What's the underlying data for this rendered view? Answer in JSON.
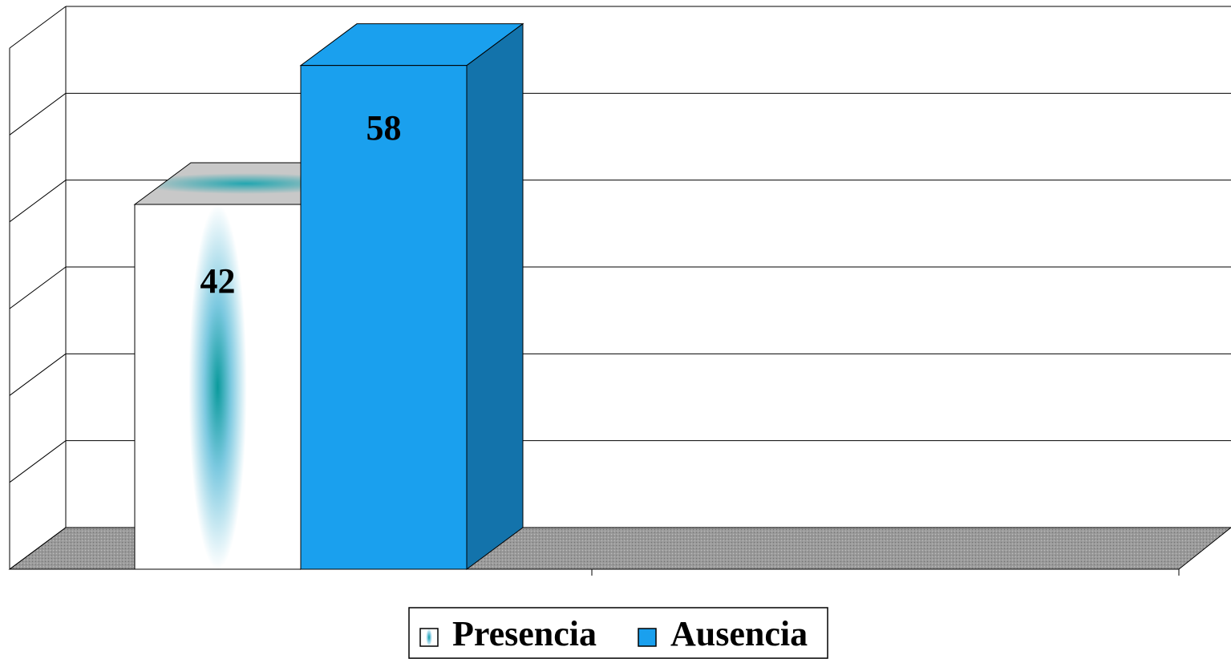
{
  "chart_data": {
    "type": "bar3d",
    "categories": [
      null
    ],
    "series": [
      {
        "name": "Presencia",
        "color": "#1aa3a8",
        "values": [
          42
        ]
      },
      {
        "name": "Ausencia",
        "color": "#1aa0ee",
        "values": [
          58
        ]
      }
    ],
    "ylim": [
      0,
      60
    ],
    "yticks": [
      0,
      10,
      20,
      30,
      40,
      50,
      60
    ],
    "grid": true,
    "legend": "bottom"
  }
}
